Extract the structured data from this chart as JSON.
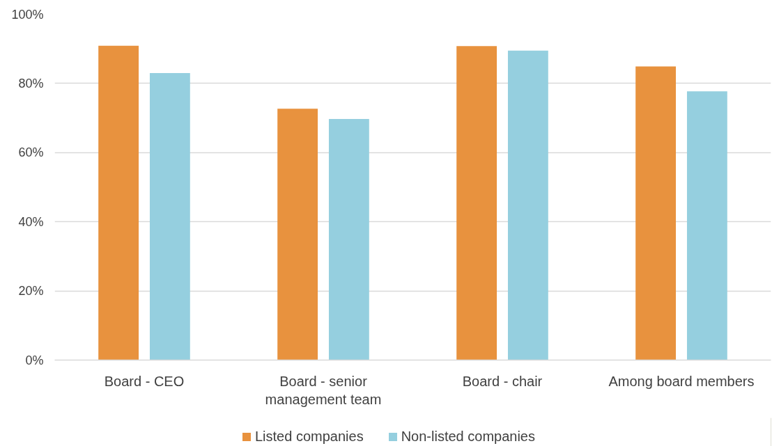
{
  "chart_data": {
    "type": "bar",
    "categories": [
      "Board - CEO",
      "Board - senior management team",
      "Board - chair",
      "Among board members"
    ],
    "series": [
      {
        "name": "Listed companies",
        "color": "#e8923e",
        "values": [
          90.9,
          72.7,
          90.8,
          84.9
        ]
      },
      {
        "name": "Non-listed companies",
        "color": "#95cfdf",
        "values": [
          83,
          69.7,
          89.5,
          77.7
        ]
      }
    ],
    "ylim": [
      0,
      100
    ],
    "yticks": [
      {
        "value": 0,
        "label": "0%"
      },
      {
        "value": 20,
        "label": "20%"
      },
      {
        "value": 40,
        "label": "40%"
      },
      {
        "value": 60,
        "label": "60%"
      },
      {
        "value": 80,
        "label": "80%"
      },
      {
        "value": 100,
        "label": "100%"
      }
    ],
    "grid": "y",
    "legend": "bottom"
  }
}
